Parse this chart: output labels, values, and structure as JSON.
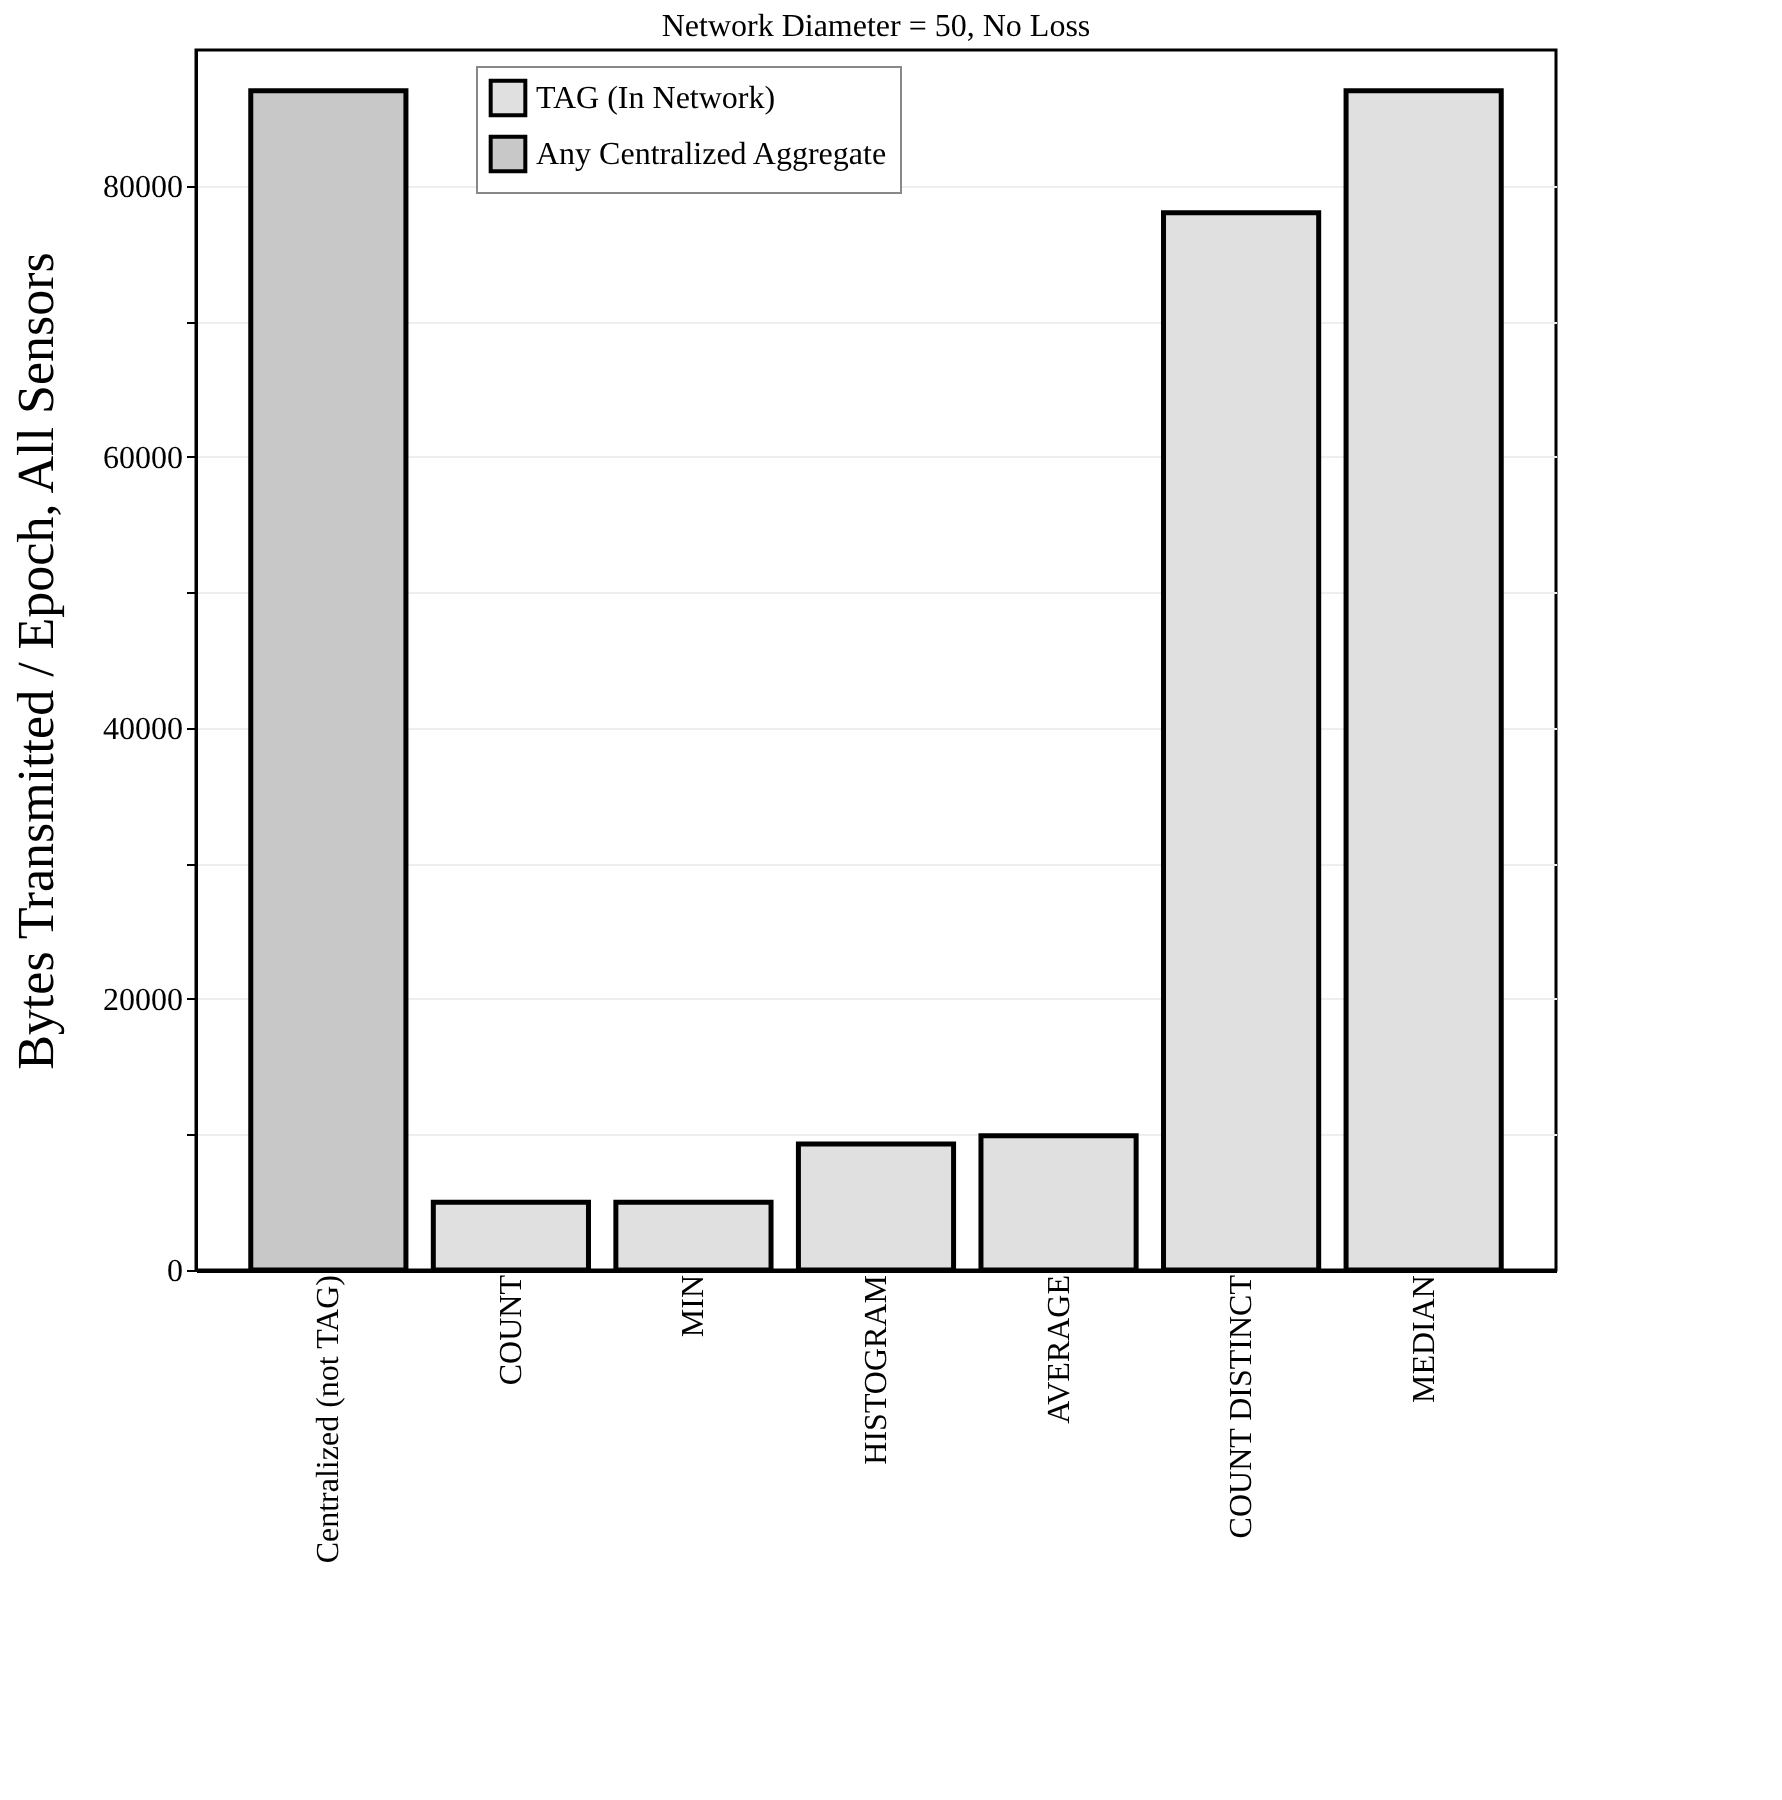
{
  "chart_data": {
    "type": "bar",
    "title": "Network Diameter = 50, No Loss",
    "ylabel": "Bytes Transmitted / Epoch, All Sensors",
    "categories": [
      "Centralized (not TAG)",
      "COUNT",
      "MIN",
      "HISTOGRAM",
      "AVERAGE",
      "COUNT DISTINCT",
      "MEDIAN"
    ],
    "series": [
      {
        "name": "TAG (In Network)",
        "color": "#e0e0e0",
        "values": [
          null,
          5000,
          5000,
          9300,
          9900,
          78000,
          87000
        ]
      },
      {
        "name": "Any Centralized Aggregate",
        "color": "#c8c8c8",
        "values": [
          87000,
          null,
          null,
          null,
          null,
          null,
          null
        ]
      }
    ],
    "ylim": [
      0,
      90000
    ],
    "yticks": [
      0,
      {
        "value": 10000,
        "label": null
      },
      20000,
      {
        "value": 30000,
        "label": null
      },
      40000,
      {
        "value": 50000,
        "label": null
      },
      60000,
      {
        "value": 70000,
        "label": null
      },
      80000
    ],
    "grid": "y",
    "legend": "top"
  }
}
